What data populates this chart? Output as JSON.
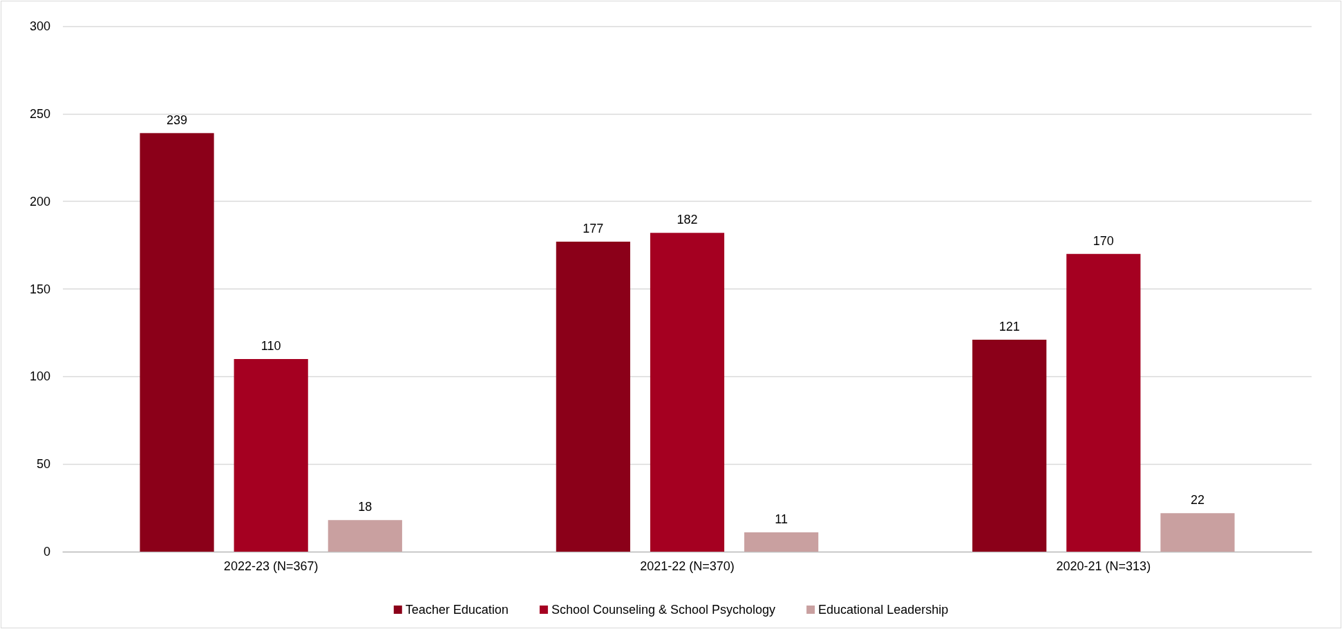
{
  "chart_data": {
    "type": "bar",
    "categories": [
      "2022-23 (N=367)",
      "2021-22 (N=370)",
      "2020-21 (N=313)"
    ],
    "series": [
      {
        "name": "Teacher Education",
        "color": "#8b0019",
        "values": [
          239,
          177,
          121
        ]
      },
      {
        "name": "School Counseling & School Psychology",
        "color": "#a50021",
        "values": [
          110,
          182,
          170
        ]
      },
      {
        "name": "Educational Leadership",
        "color": "#c9a0a0",
        "values": [
          18,
          11,
          22
        ]
      }
    ],
    "ylim": [
      0,
      300
    ],
    "yticks": [
      0,
      50,
      100,
      150,
      200,
      250,
      300
    ],
    "grid": "y",
    "legend": "bottom",
    "data_labels": true
  }
}
